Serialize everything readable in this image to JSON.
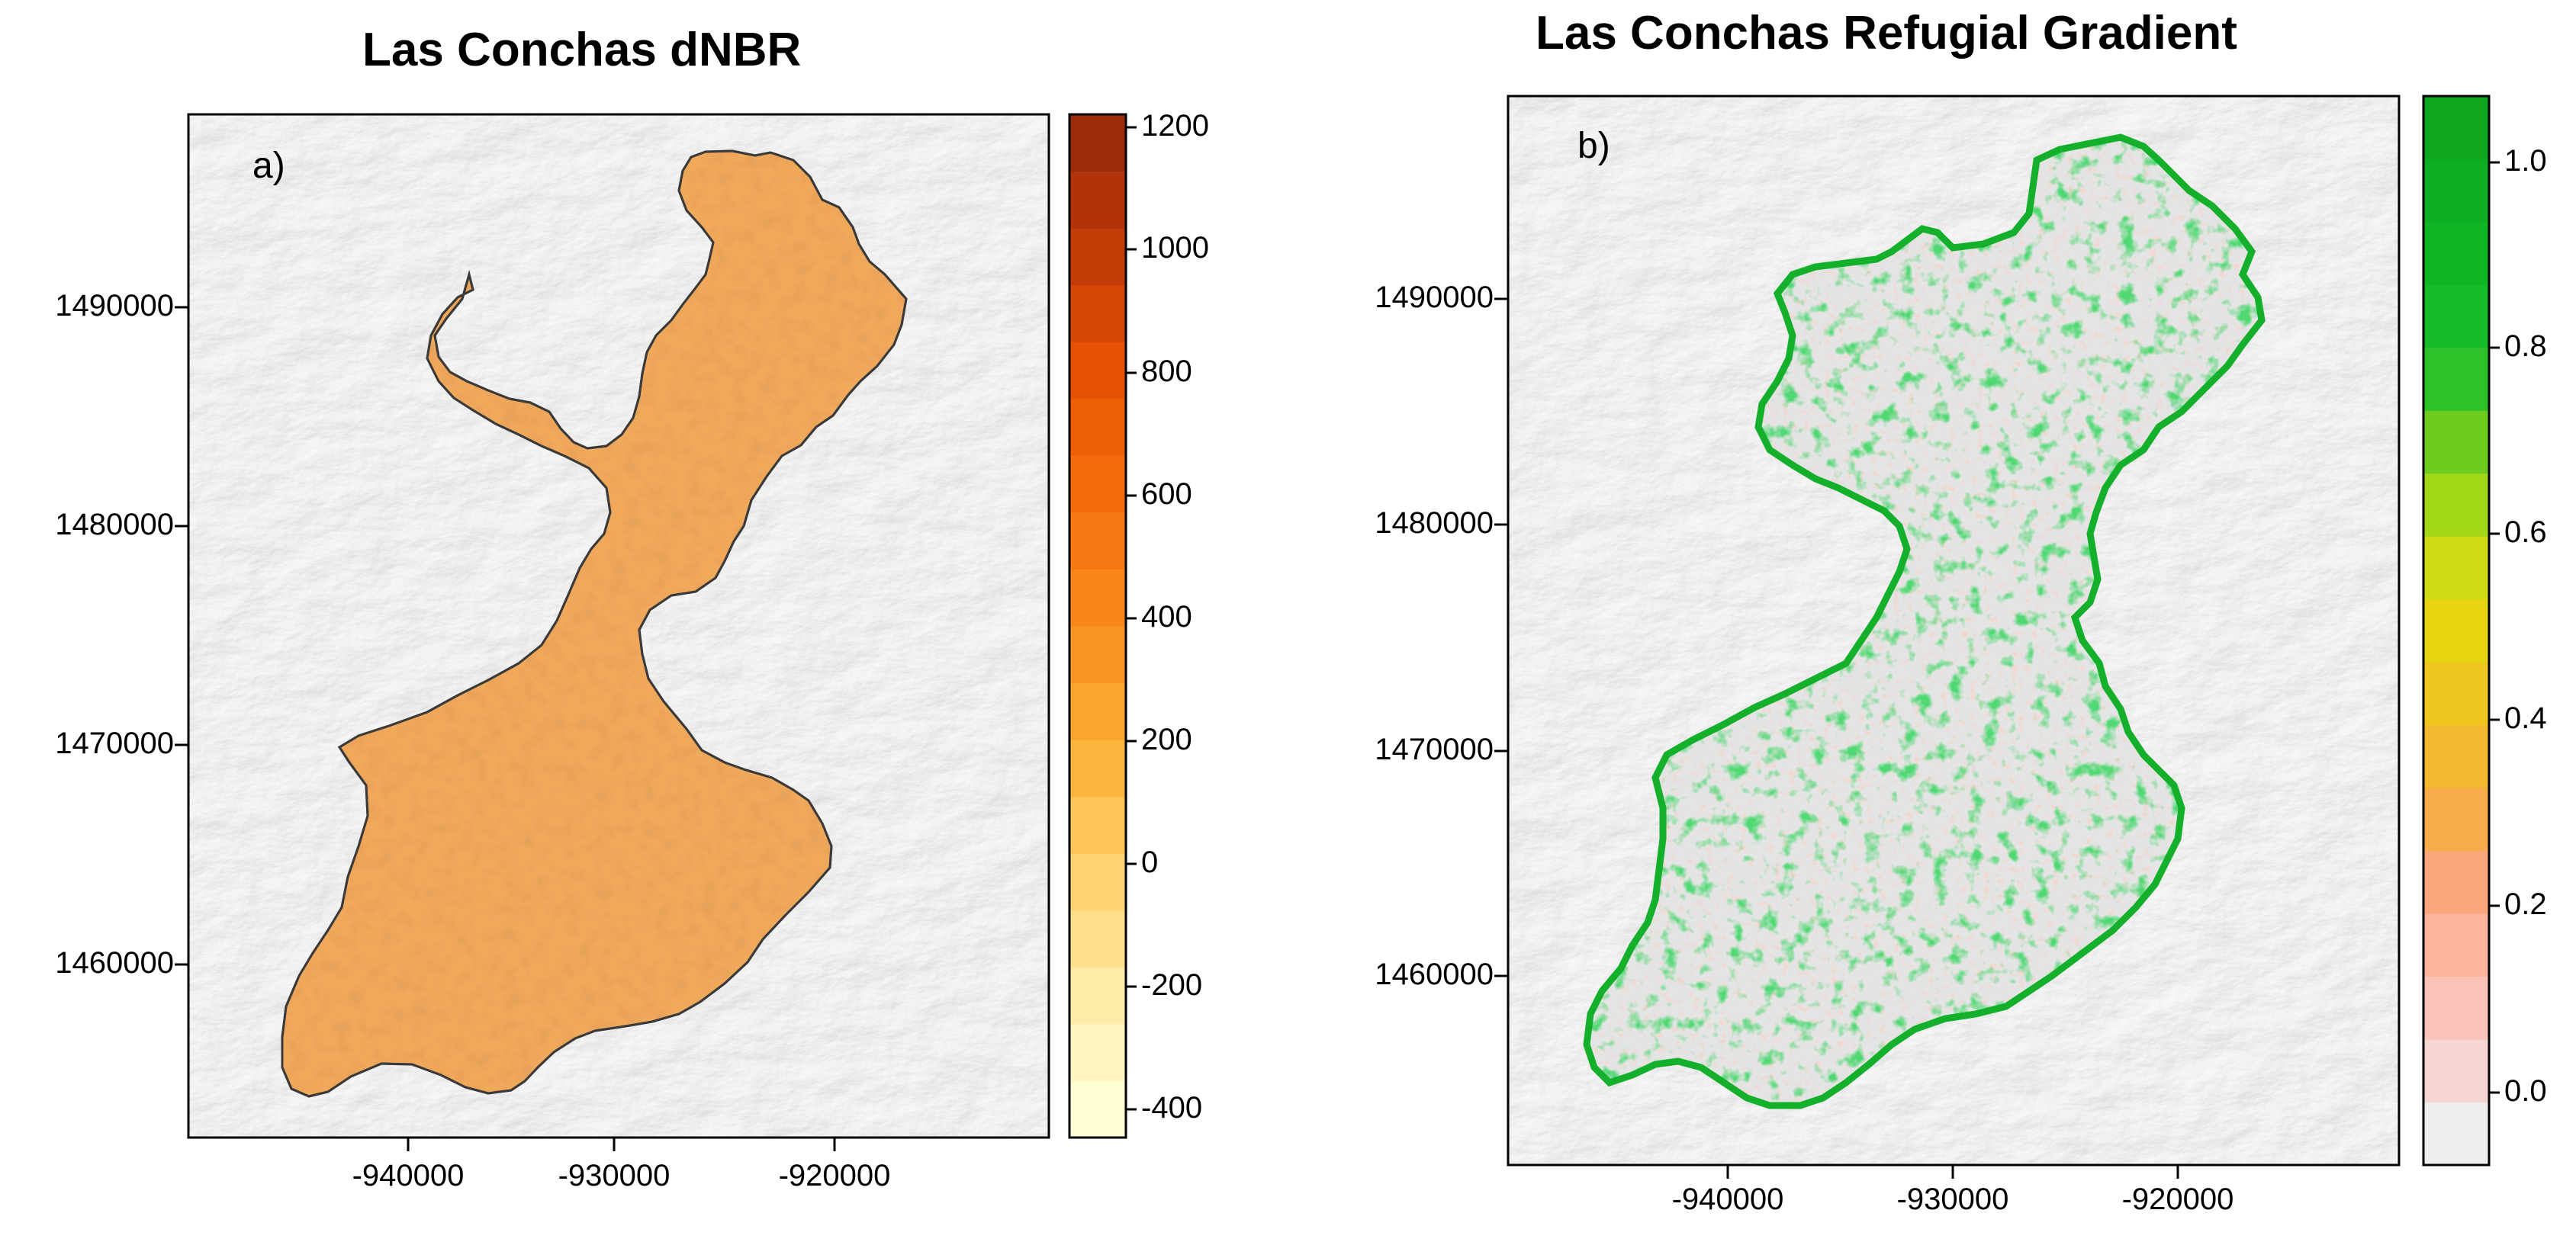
{
  "panels": [
    {
      "title": "Las Conchas dNBR",
      "panel_label": "a)",
      "x_ticks": [
        "-940000",
        "-930000",
        "-920000"
      ],
      "y_ticks": [
        "1490000",
        "1480000",
        "1470000",
        "1460000"
      ],
      "legend_ticks": [
        "1200",
        "1000",
        "800",
        "600",
        "400",
        "200",
        "0",
        "-200",
        "-400"
      ],
      "legend_colors": [
        "#fffed2",
        "#fff6c2",
        "#ffeba8",
        "#ffdf8c",
        "#ffd272",
        "#ffc455",
        "#fdb53e",
        "#fba52e",
        "#f99425",
        "#f8861a",
        "#f77812",
        "#f36b0a",
        "#ee5e06",
        "#e55205",
        "#d64606",
        "#c43c08",
        "#b0330a",
        "#9c2b0b"
      ],
      "fill_color": "#f0a85a",
      "outline_color": "#3a3a3a"
    },
    {
      "title": "Las Conchas Refugial Gradient",
      "panel_label": "b)",
      "x_ticks": [
        "-940000",
        "-930000",
        "-920000"
      ],
      "y_ticks": [
        "1490000",
        "1480000",
        "1470000",
        "1460000"
      ],
      "legend_ticks": [
        "1.0",
        "0.8",
        "0.6",
        "0.4",
        "0.2",
        "0.0"
      ],
      "legend_colors": [
        "#eeeeee",
        "#f6d6d2",
        "#fbc3b8",
        "#fdb49c",
        "#fba67a",
        "#f8ac4c",
        "#f3b830",
        "#efc61d",
        "#e8d512",
        "#cfdc14",
        "#a3d818",
        "#6dcc1e",
        "#2ec22a",
        "#16bb2a",
        "#10b526",
        "#0eae22",
        "#0da61e"
      ],
      "fill_color": "#e4e4e4",
      "refugia_color": "#14b02c"
    }
  ],
  "map_data": {
    "type": "raster_map_pair",
    "x_range": [
      -950000,
      -910000
    ],
    "y_range": [
      1453000,
      1498500
    ],
    "legend_a_range": [
      -450,
      1230
    ],
    "legend_b_range": [
      -0.06,
      1.06
    ]
  }
}
